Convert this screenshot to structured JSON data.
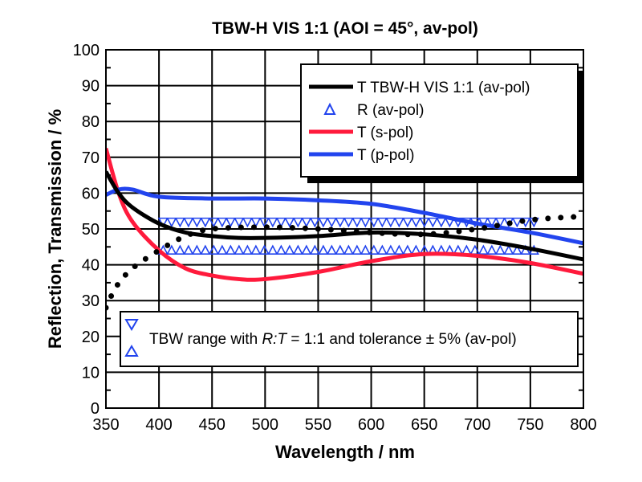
{
  "chart_data": {
    "type": "line",
    "title": "TBW-H VIS 1:1 (AOI = 45°, av-pol)",
    "xlabel": "Wavelength / nm",
    "ylabel": "Reflection, Transmission / %",
    "xlim": [
      350,
      800
    ],
    "ylim": [
      0,
      100
    ],
    "xticks": [
      350,
      400,
      450,
      500,
      550,
      600,
      650,
      700,
      750,
      800
    ],
    "yticks": [
      0,
      10,
      20,
      30,
      40,
      50,
      60,
      70,
      80,
      90,
      100
    ],
    "grid": true,
    "legend_placement": "top-right",
    "series": [
      {
        "name": "T TBW-H VIS 1:1 (av-pol)",
        "color": "#000000",
        "style": "solid",
        "x": [
          350,
          362,
          375,
          400,
          425,
          450,
          475,
          500,
          550,
          600,
          650,
          700,
          750,
          800
        ],
        "y": [
          66,
          60,
          56,
          51.5,
          49,
          48,
          47.5,
          47.5,
          48,
          49,
          48.5,
          47,
          44.5,
          41.5
        ]
      },
      {
        "name": "R (av-pol)",
        "color": "#000000",
        "style": "dotted",
        "x": [
          350,
          360,
          375,
          400,
          425,
          450,
          500,
          550,
          600,
          650,
          700,
          750,
          800
        ],
        "y": [
          28,
          34,
          39,
          44,
          48,
          50,
          50.5,
          50,
          49,
          48.5,
          50,
          52.5,
          53.5
        ]
      },
      {
        "name": "T (s-pol)",
        "color": "#ff1a3c",
        "style": "solid",
        "x": [
          350,
          362,
          375,
          400,
          425,
          450,
          475,
          500,
          550,
          600,
          650,
          700,
          750,
          800
        ],
        "y": [
          72.5,
          60,
          52,
          44,
          39,
          37,
          36,
          36,
          38,
          41,
          43,
          42.5,
          40.5,
          37.5
        ]
      },
      {
        "name": "T (p-pol)",
        "color": "#2244ee",
        "style": "solid",
        "x": [
          350,
          362,
          375,
          400,
          450,
          500,
          550,
          600,
          650,
          700,
          750,
          800
        ],
        "y": [
          59.5,
          61,
          61,
          59,
          58.5,
          58.5,
          58,
          57,
          54.5,
          51.5,
          49,
          46
        ]
      }
    ],
    "tolerance_band": {
      "x_range": [
        400,
        755
      ],
      "upper": 53,
      "lower": 43,
      "color": "#2244ee"
    },
    "legend_band_label_prefix": "TBW range with ",
    "legend_band_label_italic": "R:T",
    "legend_band_label_suffix": " = 1:1 and tolerance ± 5% (av-pol)",
    "legend_r_label": "R (av-pol)"
  }
}
